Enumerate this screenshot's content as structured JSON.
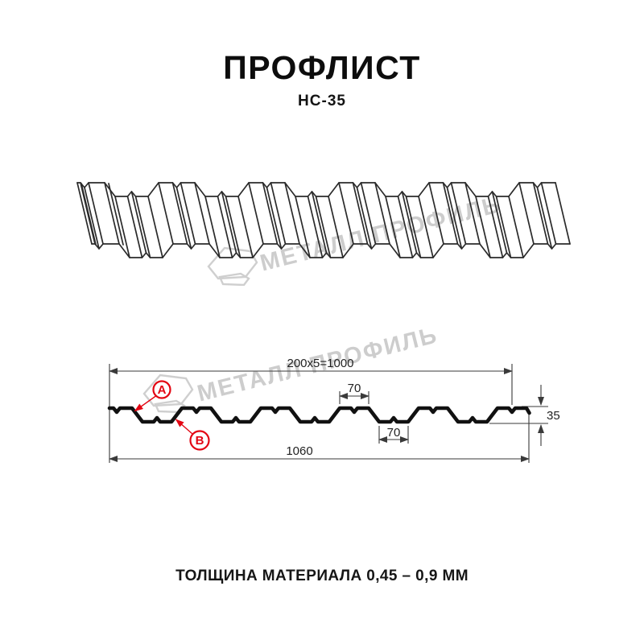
{
  "header": {
    "title": "ПРОФЛИСТ",
    "subtitle": "НС-35"
  },
  "watermark": {
    "text": "МЕТАЛЛ ПРОФИЛЬ",
    "color": "#cdcdcd"
  },
  "drawing": {
    "dimensions": {
      "coverage_width": "200x5=1000",
      "rib_top_width": "70",
      "rib_bottom_width": "70",
      "overall_width": "1060",
      "profile_height": "35"
    },
    "callouts": {
      "a": "A",
      "b": "B"
    },
    "colors": {
      "accent_red": "#e30613",
      "line": "#222222",
      "watermark": "#cdcdcd"
    }
  },
  "footer": {
    "note": "ТОЛЩИНА МАТЕРИАЛА 0,45 – 0,9 ММ"
  }
}
